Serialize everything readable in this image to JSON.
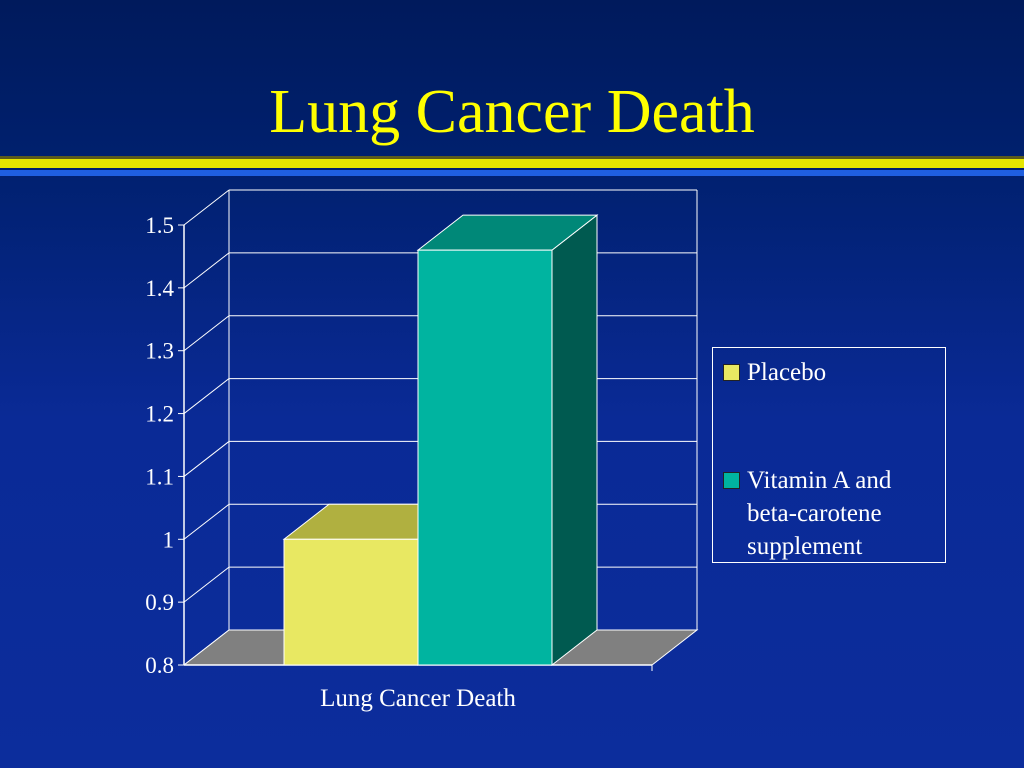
{
  "slide": {
    "title": "Lung Cancer Death"
  },
  "colors": {
    "background": "#00206e",
    "title": "#ffff00",
    "placebo_front": "#e8e862",
    "placebo_top": "#b0b040",
    "vitamin_front": "#00b4a0",
    "vitamin_top": "#008878",
    "vitamin_side": "#005a50",
    "floor": "#808080",
    "gridlines": "#ffffff"
  },
  "chart_data": {
    "type": "bar",
    "style": "3d-clustered-column",
    "categories": [
      "Lung Cancer Death"
    ],
    "series": [
      {
        "name": "Placebo",
        "values": [
          1.0
        ]
      },
      {
        "name": "Vitamin A and beta-carotene supplement",
        "values": [
          1.46
        ]
      }
    ],
    "ylim": [
      0.8,
      1.5
    ],
    "yticks": [
      "0.8",
      "0.9",
      "1",
      "1.1",
      "1.2",
      "1.3",
      "1.4",
      "1.5"
    ],
    "xlabel": "",
    "ylabel": "",
    "grid": true,
    "legend": "right"
  },
  "legend": {
    "items": [
      {
        "label": "Placebo"
      },
      {
        "label": "Vitamin A and beta-carotene supplement"
      }
    ]
  }
}
